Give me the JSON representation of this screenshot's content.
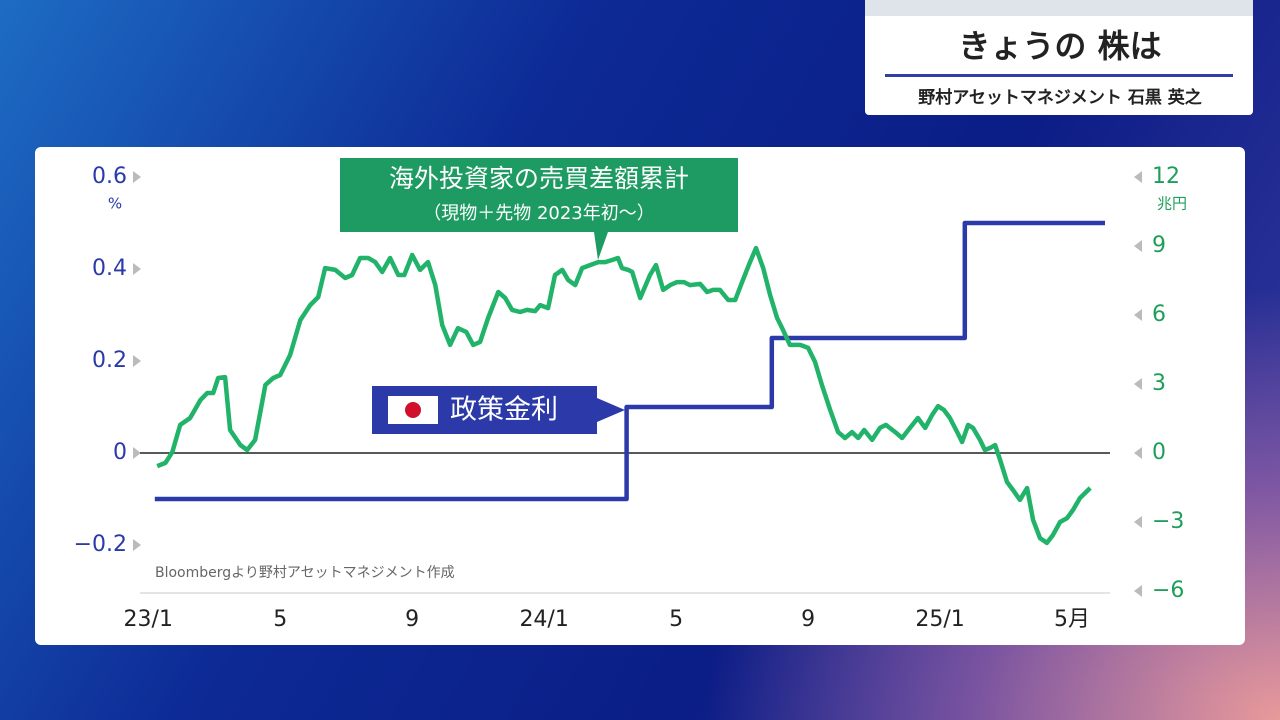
{
  "header": {
    "title": "きょうの 株は",
    "subtitle": "野村アセットマネジメント 石黒 英之"
  },
  "chart_data": {
    "type": "line",
    "x_unit_note": null,
    "xlim": [
      -0.25,
      29
    ],
    "xticks": [
      {
        "value": 0,
        "label": "23/1"
      },
      {
        "value": 4,
        "label": "5"
      },
      {
        "value": 8,
        "label": "9"
      },
      {
        "value": 12,
        "label": "24/1"
      },
      {
        "value": 16,
        "label": "5"
      },
      {
        "value": 20,
        "label": "9"
      },
      {
        "value": 24,
        "label": "25/1"
      },
      {
        "value": 28,
        "label": "5月"
      }
    ],
    "ylim": [
      -0.3,
      0.6
    ],
    "yticks": [
      0.6,
      0.4,
      0.2,
      0,
      {
        "value": -0.2,
        "label": "−0.2"
      }
    ],
    "y_unit": "%",
    "y2lim": [
      -6,
      12
    ],
    "y2ticks": [
      12,
      9,
      6,
      3,
      0,
      {
        "value": -3,
        "label": "−3"
      },
      {
        "value": -6,
        "label": "−6"
      }
    ],
    "y2_unit": "兆円",
    "zero_line": true,
    "source": "Bloombergより野村アセットマネジメント作成",
    "series": [
      {
        "name": "海外投資家の売買差額累計",
        "note": "（現物＋先物 2023年初〜）",
        "color": "#22b36a",
        "axis": "y2",
        "x": [
          0.27,
          0.52,
          0.73,
          0.97,
          1.27,
          1.58,
          1.79,
          1.97,
          2.12,
          2.33,
          2.48,
          2.79,
          3.0,
          3.24,
          3.55,
          3.79,
          4.0,
          4.3,
          4.61,
          4.91,
          5.15,
          5.36,
          5.67,
          5.97,
          6.18,
          6.42,
          6.67,
          6.88,
          7.09,
          7.33,
          7.58,
          7.76,
          8.0,
          8.24,
          8.48,
          8.7,
          8.91,
          9.15,
          9.39,
          9.64,
          9.85,
          10.06,
          10.3,
          10.61,
          10.82,
          11.03,
          11.27,
          11.48,
          11.73,
          11.88,
          12.12,
          12.33,
          12.55,
          12.73,
          12.94,
          13.15,
          13.39,
          13.64,
          13.85,
          14.06,
          14.24,
          14.36,
          14.55,
          14.67,
          14.91,
          15.21,
          15.39,
          15.61,
          15.82,
          16.03,
          16.24,
          16.42,
          16.73,
          16.94,
          17.12,
          17.33,
          17.58,
          17.79,
          18.0,
          18.24,
          18.42,
          18.64,
          18.85,
          19.06,
          19.24,
          19.45,
          19.76,
          20.0,
          20.21,
          20.42,
          20.67,
          20.91,
          21.12,
          21.33,
          21.52,
          21.7,
          21.94,
          22.18,
          22.36,
          22.64,
          22.85,
          23.09,
          23.33,
          23.55,
          23.76,
          23.94,
          24.12,
          24.3,
          24.52,
          24.67,
          24.85,
          25.0,
          25.21,
          25.36,
          25.52,
          25.67,
          25.82,
          26.03,
          26.21,
          26.42,
          26.64,
          26.82,
          27.03,
          27.24,
          27.42,
          27.64,
          27.85,
          28.03,
          28.24,
          28.55
        ],
        "values": [
          -0.57,
          -0.43,
          0.04,
          1.22,
          1.52,
          2.3,
          2.61,
          2.61,
          3.26,
          3.3,
          1.0,
          0.35,
          0.13,
          0.57,
          2.96,
          3.26,
          3.39,
          4.26,
          5.78,
          6.43,
          6.78,
          8.04,
          7.96,
          7.61,
          7.74,
          8.48,
          8.48,
          8.3,
          7.87,
          8.48,
          7.74,
          7.74,
          8.61,
          7.96,
          8.3,
          7.3,
          5.57,
          4.7,
          5.43,
          5.26,
          4.7,
          4.83,
          5.87,
          7.0,
          6.74,
          6.22,
          6.13,
          6.22,
          6.17,
          6.43,
          6.3,
          7.74,
          7.96,
          7.52,
          7.3,
          8.04,
          8.17,
          8.3,
          8.3,
          8.39,
          8.48,
          8.04,
          7.96,
          7.87,
          6.74,
          7.74,
          8.17,
          7.09,
          7.3,
          7.43,
          7.43,
          7.3,
          7.35,
          7.0,
          7.09,
          7.09,
          6.65,
          6.65,
          7.43,
          8.3,
          8.91,
          8.04,
          6.87,
          5.87,
          5.35,
          4.7,
          4.7,
          4.57,
          3.96,
          2.96,
          1.87,
          0.91,
          0.65,
          0.91,
          0.65,
          1.0,
          0.57,
          1.09,
          1.22,
          0.91,
          0.65,
          1.09,
          1.52,
          1.09,
          1.65,
          2.04,
          1.87,
          1.52,
          0.91,
          0.48,
          1.22,
          1.09,
          0.57,
          0.13,
          0.22,
          0.35,
          -0.3,
          -1.26,
          -1.61,
          -2.04,
          -1.52,
          -2.91,
          -3.7,
          -3.91,
          -3.57,
          -3.0,
          -2.83,
          -2.48,
          -1.96,
          -1.52
        ]
      },
      {
        "name": "政策金利",
        "color": "#2b3aa8",
        "axis": "y",
        "x": [
          0.2,
          14.5,
          14.5,
          18.9,
          18.9,
          24.75,
          24.75,
          29
        ],
        "values": [
          -0.1,
          -0.1,
          0.1,
          0.1,
          0.25,
          0.25,
          0.5,
          0.5
        ]
      }
    ]
  }
}
